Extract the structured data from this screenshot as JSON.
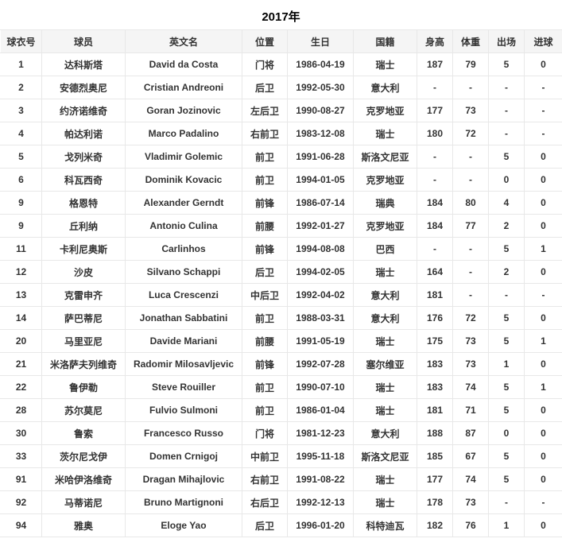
{
  "page": {
    "title": "2017年"
  },
  "colors": {
    "header_bg": "#f5f5f5",
    "border": "#e8e8e8",
    "text": "#333333"
  },
  "table": {
    "columns": [
      "球衣号",
      "球员",
      "英文名",
      "位置",
      "生日",
      "国籍",
      "身高",
      "体重",
      "出场",
      "进球"
    ],
    "rows": [
      [
        "1",
        "达科斯塔",
        "David da Costa",
        "门将",
        "1986-04-19",
        "瑞士",
        "187",
        "79",
        "5",
        "0"
      ],
      [
        "2",
        "安德烈奥尼",
        "Cristian Andreoni",
        "后卫",
        "1992-05-30",
        "意大利",
        "-",
        "-",
        "-",
        "-"
      ],
      [
        "3",
        "约济诺维奇",
        "Goran Jozinovic",
        "左后卫",
        "1990-08-27",
        "克罗地亚",
        "177",
        "73",
        "-",
        "-"
      ],
      [
        "4",
        "帕达利诺",
        "Marco Padalino",
        "右前卫",
        "1983-12-08",
        "瑞士",
        "180",
        "72",
        "-",
        "-"
      ],
      [
        "5",
        "戈列米奇",
        "Vladimir Golemic",
        "前卫",
        "1991-06-28",
        "斯洛文尼亚",
        "-",
        "-",
        "5",
        "0"
      ],
      [
        "6",
        "科瓦西奇",
        "Dominik Kovacic",
        "前卫",
        "1994-01-05",
        "克罗地亚",
        "-",
        "-",
        "0",
        "0"
      ],
      [
        "9",
        "格恩特",
        "Alexander Gerndt",
        "前锋",
        "1986-07-14",
        "瑞典",
        "184",
        "80",
        "4",
        "0"
      ],
      [
        "9",
        "丘利纳",
        "Antonio Culina",
        "前腰",
        "1992-01-27",
        "克罗地亚",
        "184",
        "77",
        "2",
        "0"
      ],
      [
        "11",
        "卡利尼奥斯",
        "Carlinhos",
        "前锋",
        "1994-08-08",
        "巴西",
        "-",
        "-",
        "5",
        "1"
      ],
      [
        "12",
        "沙皮",
        "Silvano Schappi",
        "后卫",
        "1994-02-05",
        "瑞士",
        "164",
        "-",
        "2",
        "0"
      ],
      [
        "13",
        "克雷申齐",
        "Luca Crescenzi",
        "中后卫",
        "1992-04-02",
        "意大利",
        "181",
        "-",
        "-",
        "-"
      ],
      [
        "14",
        "萨巴蒂尼",
        "Jonathan Sabbatini",
        "前卫",
        "1988-03-31",
        "意大利",
        "176",
        "72",
        "5",
        "0"
      ],
      [
        "20",
        "马里亚尼",
        "Davide Mariani",
        "前腰",
        "1991-05-19",
        "瑞士",
        "175",
        "73",
        "5",
        "1"
      ],
      [
        "21",
        "米洛萨夫列维奇",
        "Radomir Milosavljevic",
        "前锋",
        "1992-07-28",
        "塞尔维亚",
        "183",
        "73",
        "1",
        "0"
      ],
      [
        "22",
        "鲁伊勒",
        "Steve Rouiller",
        "前卫",
        "1990-07-10",
        "瑞士",
        "183",
        "74",
        "5",
        "1"
      ],
      [
        "28",
        "苏尔莫尼",
        "Fulvio Sulmoni",
        "前卫",
        "1986-01-04",
        "瑞士",
        "181",
        "71",
        "5",
        "0"
      ],
      [
        "30",
        "鲁索",
        "Francesco Russo",
        "门将",
        "1981-12-23",
        "意大利",
        "188",
        "87",
        "0",
        "0"
      ],
      [
        "33",
        "茨尔尼戈伊",
        "Domen Crnigoj",
        "中前卫",
        "1995-11-18",
        "斯洛文尼亚",
        "185",
        "67",
        "5",
        "0"
      ],
      [
        "91",
        "米哈伊洛维奇",
        "Dragan Mihajlovic",
        "右前卫",
        "1991-08-22",
        "瑞士",
        "177",
        "74",
        "5",
        "0"
      ],
      [
        "92",
        "马蒂诺尼",
        "Bruno Martignoni",
        "右后卫",
        "1992-12-13",
        "瑞士",
        "178",
        "73",
        "-",
        "-"
      ],
      [
        "94",
        "雅奥",
        "Eloge Yao",
        "后卫",
        "1996-01-20",
        "科特迪瓦",
        "182",
        "76",
        "1",
        "0"
      ]
    ]
  }
}
